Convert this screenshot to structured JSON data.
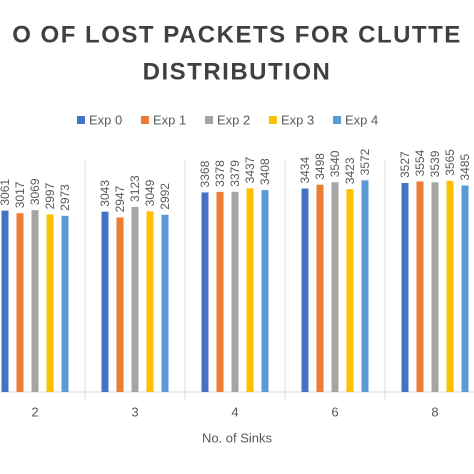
{
  "chart_data": {
    "type": "bar",
    "title": [
      "O OF LOST PACKETS FOR CLUTTE",
      "DISTRIBUTION"
    ],
    "x_label": "No. of Sinks",
    "categories": [
      "2",
      "3",
      "4",
      "6",
      "8"
    ],
    "series": [
      {
        "name": "Exp 0",
        "color": "#4472c4",
        "values": [
          3061,
          3043,
          3368,
          3434,
          3527
        ]
      },
      {
        "name": "Exp 1",
        "color": "#ed7d31",
        "values": [
          3017,
          2947,
          3378,
          3498,
          3554
        ]
      },
      {
        "name": "Exp 2",
        "color": "#a5a5a5",
        "values": [
          3069,
          3123,
          3379,
          3540,
          3539
        ]
      },
      {
        "name": "Exp 3",
        "color": "#ffc000",
        "values": [
          2997,
          3049,
          3437,
          3423,
          3565
        ]
      },
      {
        "name": "Exp 4",
        "color": "#5b9bd5",
        "values": [
          2973,
          2992,
          3408,
          3572,
          3485
        ]
      }
    ],
    "ylim": [
      0,
      4000
    ]
  }
}
